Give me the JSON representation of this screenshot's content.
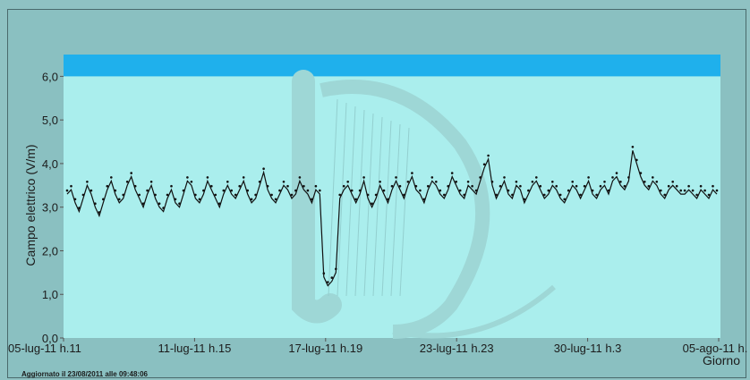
{
  "chart_data": {
    "type": "line",
    "title": "",
    "xlabel": "Giorno",
    "ylabel": "Campo elettrico (V/m)",
    "ylim": [
      0,
      6.5
    ],
    "yticks": [
      "0,0",
      "1,0",
      "2,0",
      "3,0",
      "4,0",
      "5,0",
      "6,0"
    ],
    "xticks": [
      "05-lug-11 h.11",
      "11-lug-11 h.15",
      "17-lug-11 h.19",
      "23-lug-11 h.23",
      "30-lug-11 h.3",
      "05-ago-11 h."
    ],
    "limit_band": [
      6.0,
      6.5
    ],
    "colors": {
      "plot_bg": "#aaeeed",
      "limit_band": "#1fb0ec",
      "series": "#111111",
      "watermark": "#9ed7d6"
    },
    "series": [
      {
        "values": [
          3.3,
          3.4,
          3.1,
          2.9,
          3.2,
          3.5,
          3.3,
          3.0,
          2.8,
          3.1,
          3.4,
          3.6,
          3.3,
          3.1,
          3.2,
          3.5,
          3.7,
          3.4,
          3.2,
          3.0,
          3.3,
          3.5,
          3.2,
          3.0,
          2.9,
          3.2,
          3.4,
          3.1,
          3.0,
          3.3,
          3.6,
          3.5,
          3.2,
          3.1,
          3.3,
          3.6,
          3.4,
          3.2,
          3.0,
          3.3,
          3.5,
          3.3,
          3.2,
          3.4,
          3.6,
          3.3,
          3.1,
          3.2,
          3.5,
          3.8,
          3.4,
          3.2,
          3.1,
          3.3,
          3.5,
          3.4,
          3.2,
          3.3,
          3.6,
          3.4,
          3.3,
          3.1,
          3.4,
          3.3,
          1.4,
          1.2,
          1.3,
          1.5,
          3.2,
          3.4,
          3.5,
          3.3,
          3.1,
          3.3,
          3.6,
          3.2,
          3.0,
          3.2,
          3.5,
          3.3,
          3.1,
          3.4,
          3.6,
          3.4,
          3.2,
          3.5,
          3.7,
          3.4,
          3.3,
          3.1,
          3.4,
          3.6,
          3.5,
          3.3,
          3.2,
          3.4,
          3.7,
          3.5,
          3.3,
          3.2,
          3.5,
          3.4,
          3.3,
          3.6,
          3.9,
          4.1,
          3.5,
          3.2,
          3.4,
          3.6,
          3.3,
          3.2,
          3.5,
          3.4,
          3.1,
          3.3,
          3.5,
          3.6,
          3.4,
          3.2,
          3.3,
          3.5,
          3.4,
          3.2,
          3.1,
          3.3,
          3.5,
          3.4,
          3.2,
          3.4,
          3.6,
          3.3,
          3.2,
          3.4,
          3.5,
          3.3,
          3.6,
          3.7,
          3.5,
          3.4,
          3.6,
          4.3,
          4.0,
          3.7,
          3.5,
          3.4,
          3.6,
          3.5,
          3.3,
          3.2,
          3.4,
          3.5,
          3.4,
          3.3,
          3.3,
          3.4,
          3.3,
          3.2,
          3.4,
          3.3,
          3.2,
          3.4,
          3.3
        ]
      }
    ]
  },
  "footer": {
    "updated": "Aggiornato il 23/08/2011 alle 09:48:06"
  }
}
